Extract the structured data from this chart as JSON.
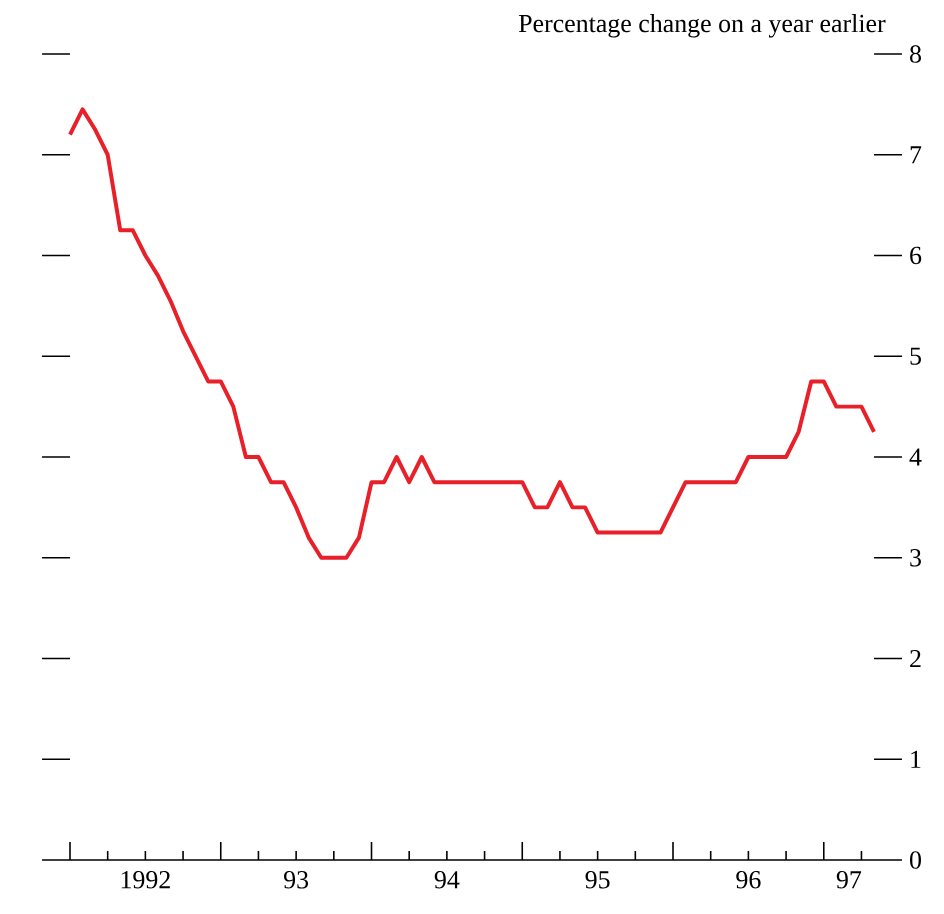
{
  "chart_data": {
    "type": "line",
    "title": "Percentage change on a year earlier",
    "series": [
      {
        "color": "#e8202a",
        "x": [
          "1992-01",
          "1992-02",
          "1992-03",
          "1992-04",
          "1992-05",
          "1992-06",
          "1992-07",
          "1992-08",
          "1992-09",
          "1992-10",
          "1992-11",
          "1992-12",
          "1993-01",
          "1993-02",
          "1993-03",
          "1993-04",
          "1993-05",
          "1993-06",
          "1993-07",
          "1993-08",
          "1993-09",
          "1993-10",
          "1993-11",
          "1993-12",
          "1994-01",
          "1994-02",
          "1994-03",
          "1994-04",
          "1994-05",
          "1994-06",
          "1994-07",
          "1994-08",
          "1994-09",
          "1994-10",
          "1994-11",
          "1994-12",
          "1995-01",
          "1995-02",
          "1995-03",
          "1995-04",
          "1995-05",
          "1995-06",
          "1995-07",
          "1995-08",
          "1995-09",
          "1995-10",
          "1995-11",
          "1995-12",
          "1996-01",
          "1996-02",
          "1996-03",
          "1996-04",
          "1996-05",
          "1996-06",
          "1996-07",
          "1996-08",
          "1996-09",
          "1996-10",
          "1996-11",
          "1996-12",
          "1997-01",
          "1997-02",
          "1997-03",
          "1997-04",
          "1997-05"
        ],
        "values": [
          7.2,
          7.45,
          7.25,
          7.0,
          6.25,
          6.25,
          6.0,
          5.8,
          5.55,
          5.25,
          5.0,
          4.75,
          4.75,
          4.5,
          4.0,
          4.0,
          3.75,
          3.75,
          3.5,
          3.2,
          3.0,
          3.0,
          3.0,
          3.2,
          3.75,
          3.75,
          4.0,
          3.75,
          4.0,
          3.75,
          3.75,
          3.75,
          3.75,
          3.75,
          3.75,
          3.75,
          3.75,
          3.5,
          3.5,
          3.75,
          3.5,
          3.5,
          3.25,
          3.25,
          3.25,
          3.25,
          3.25,
          3.25,
          3.5,
          3.75,
          3.75,
          3.75,
          3.75,
          3.75,
          4.0,
          4.0,
          4.0,
          4.0,
          4.25,
          4.75,
          4.75,
          4.5,
          4.5,
          4.5,
          4.25
        ]
      }
    ],
    "xlim": [
      "1992-01",
      "1997-05"
    ],
    "ylim": [
      0,
      8
    ],
    "xticks": [
      {
        "value": "1992-01",
        "label": null
      },
      {
        "value": "1992-04",
        "label": null
      },
      {
        "value": "1992-07",
        "label": null
      },
      {
        "value": "1992-10",
        "label": null
      },
      {
        "value": "1993-01",
        "label": null
      },
      {
        "value": "1993-04",
        "label": null
      },
      {
        "value": "1993-07",
        "label": null
      },
      {
        "value": "1993-10",
        "label": null
      },
      {
        "value": "1994-01",
        "label": null
      },
      {
        "value": "1994-04",
        "label": null
      },
      {
        "value": "1994-07",
        "label": null
      },
      {
        "value": "1994-10",
        "label": null
      },
      {
        "value": "1995-01",
        "label": null
      },
      {
        "value": "1995-04",
        "label": null
      },
      {
        "value": "1995-07",
        "label": null
      },
      {
        "value": "1995-10",
        "label": null
      },
      {
        "value": "1996-01",
        "label": null
      },
      {
        "value": "1996-04",
        "label": null
      },
      {
        "value": "1996-07",
        "label": null
      },
      {
        "value": "1996-10",
        "label": null
      },
      {
        "value": "1997-01",
        "label": null
      },
      {
        "value": "1997-04",
        "label": null
      },
      {
        "value": "1992-07",
        "label": "1992"
      },
      {
        "value": "1993-07",
        "label": "93"
      },
      {
        "value": "1994-07",
        "label": "94"
      },
      {
        "value": "1995-07",
        "label": "95"
      },
      {
        "value": "1996-07",
        "label": "96"
      },
      {
        "value": "1997-03",
        "label": "97"
      }
    ],
    "yticks": [
      0,
      1,
      2,
      3,
      4,
      5,
      6,
      7,
      8
    ]
  }
}
